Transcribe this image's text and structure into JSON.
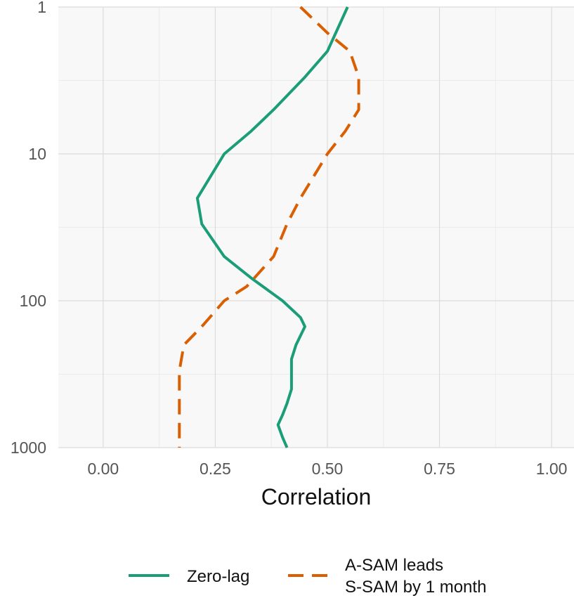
{
  "chart_data": {
    "type": "line",
    "xlabel": "Correlation",
    "ylabel": "",
    "xlim": [
      -0.1,
      1.05
    ],
    "x_ticks": [
      "0.00",
      "0.25",
      "0.50",
      "0.75",
      "1.00"
    ],
    "x_tick_values": [
      0,
      0.25,
      0.5,
      0.75,
      1.0
    ],
    "y_scale": "log-reversed",
    "ylim": [
      1,
      1000
    ],
    "y_ticks": [
      "1",
      "10",
      "100",
      "1000"
    ],
    "y_tick_values": [
      1,
      10,
      100,
      1000
    ],
    "grid": true,
    "legend_position": "bottom",
    "series": [
      {
        "name": "Zero-lag",
        "style": "solid",
        "color": "#1b9e77",
        "points": [
          [
            0.545,
            1
          ],
          [
            0.5,
            2
          ],
          [
            0.45,
            3
          ],
          [
            0.38,
            5
          ],
          [
            0.33,
            7
          ],
          [
            0.27,
            10
          ],
          [
            0.21,
            20
          ],
          [
            0.22,
            30
          ],
          [
            0.27,
            50
          ],
          [
            0.33,
            70
          ],
          [
            0.4,
            100
          ],
          [
            0.44,
            130
          ],
          [
            0.45,
            150
          ],
          [
            0.43,
            200
          ],
          [
            0.42,
            250
          ],
          [
            0.42,
            300
          ],
          [
            0.42,
            400
          ],
          [
            0.41,
            500
          ],
          [
            0.4,
            600
          ],
          [
            0.39,
            700
          ],
          [
            0.4,
            850
          ],
          [
            0.41,
            1000
          ]
        ]
      },
      {
        "name": "A-SAM leads S-SAM by 1 month",
        "legend_lines": [
          "A-SAM leads",
          "S-SAM by 1 month"
        ],
        "style": "dashed",
        "color": "#d95f02",
        "points": [
          [
            0.44,
            1
          ],
          [
            0.5,
            1.5
          ],
          [
            0.55,
            2
          ],
          [
            0.57,
            3
          ],
          [
            0.57,
            5
          ],
          [
            0.54,
            7
          ],
          [
            0.5,
            10
          ],
          [
            0.44,
            20
          ],
          [
            0.41,
            30
          ],
          [
            0.38,
            50
          ],
          [
            0.32,
            80
          ],
          [
            0.27,
            100
          ],
          [
            0.22,
            150
          ],
          [
            0.18,
            200
          ],
          [
            0.17,
            300
          ],
          [
            0.17,
            500
          ],
          [
            0.17,
            700
          ],
          [
            0.17,
            850
          ],
          [
            0.17,
            1000
          ]
        ]
      }
    ]
  }
}
